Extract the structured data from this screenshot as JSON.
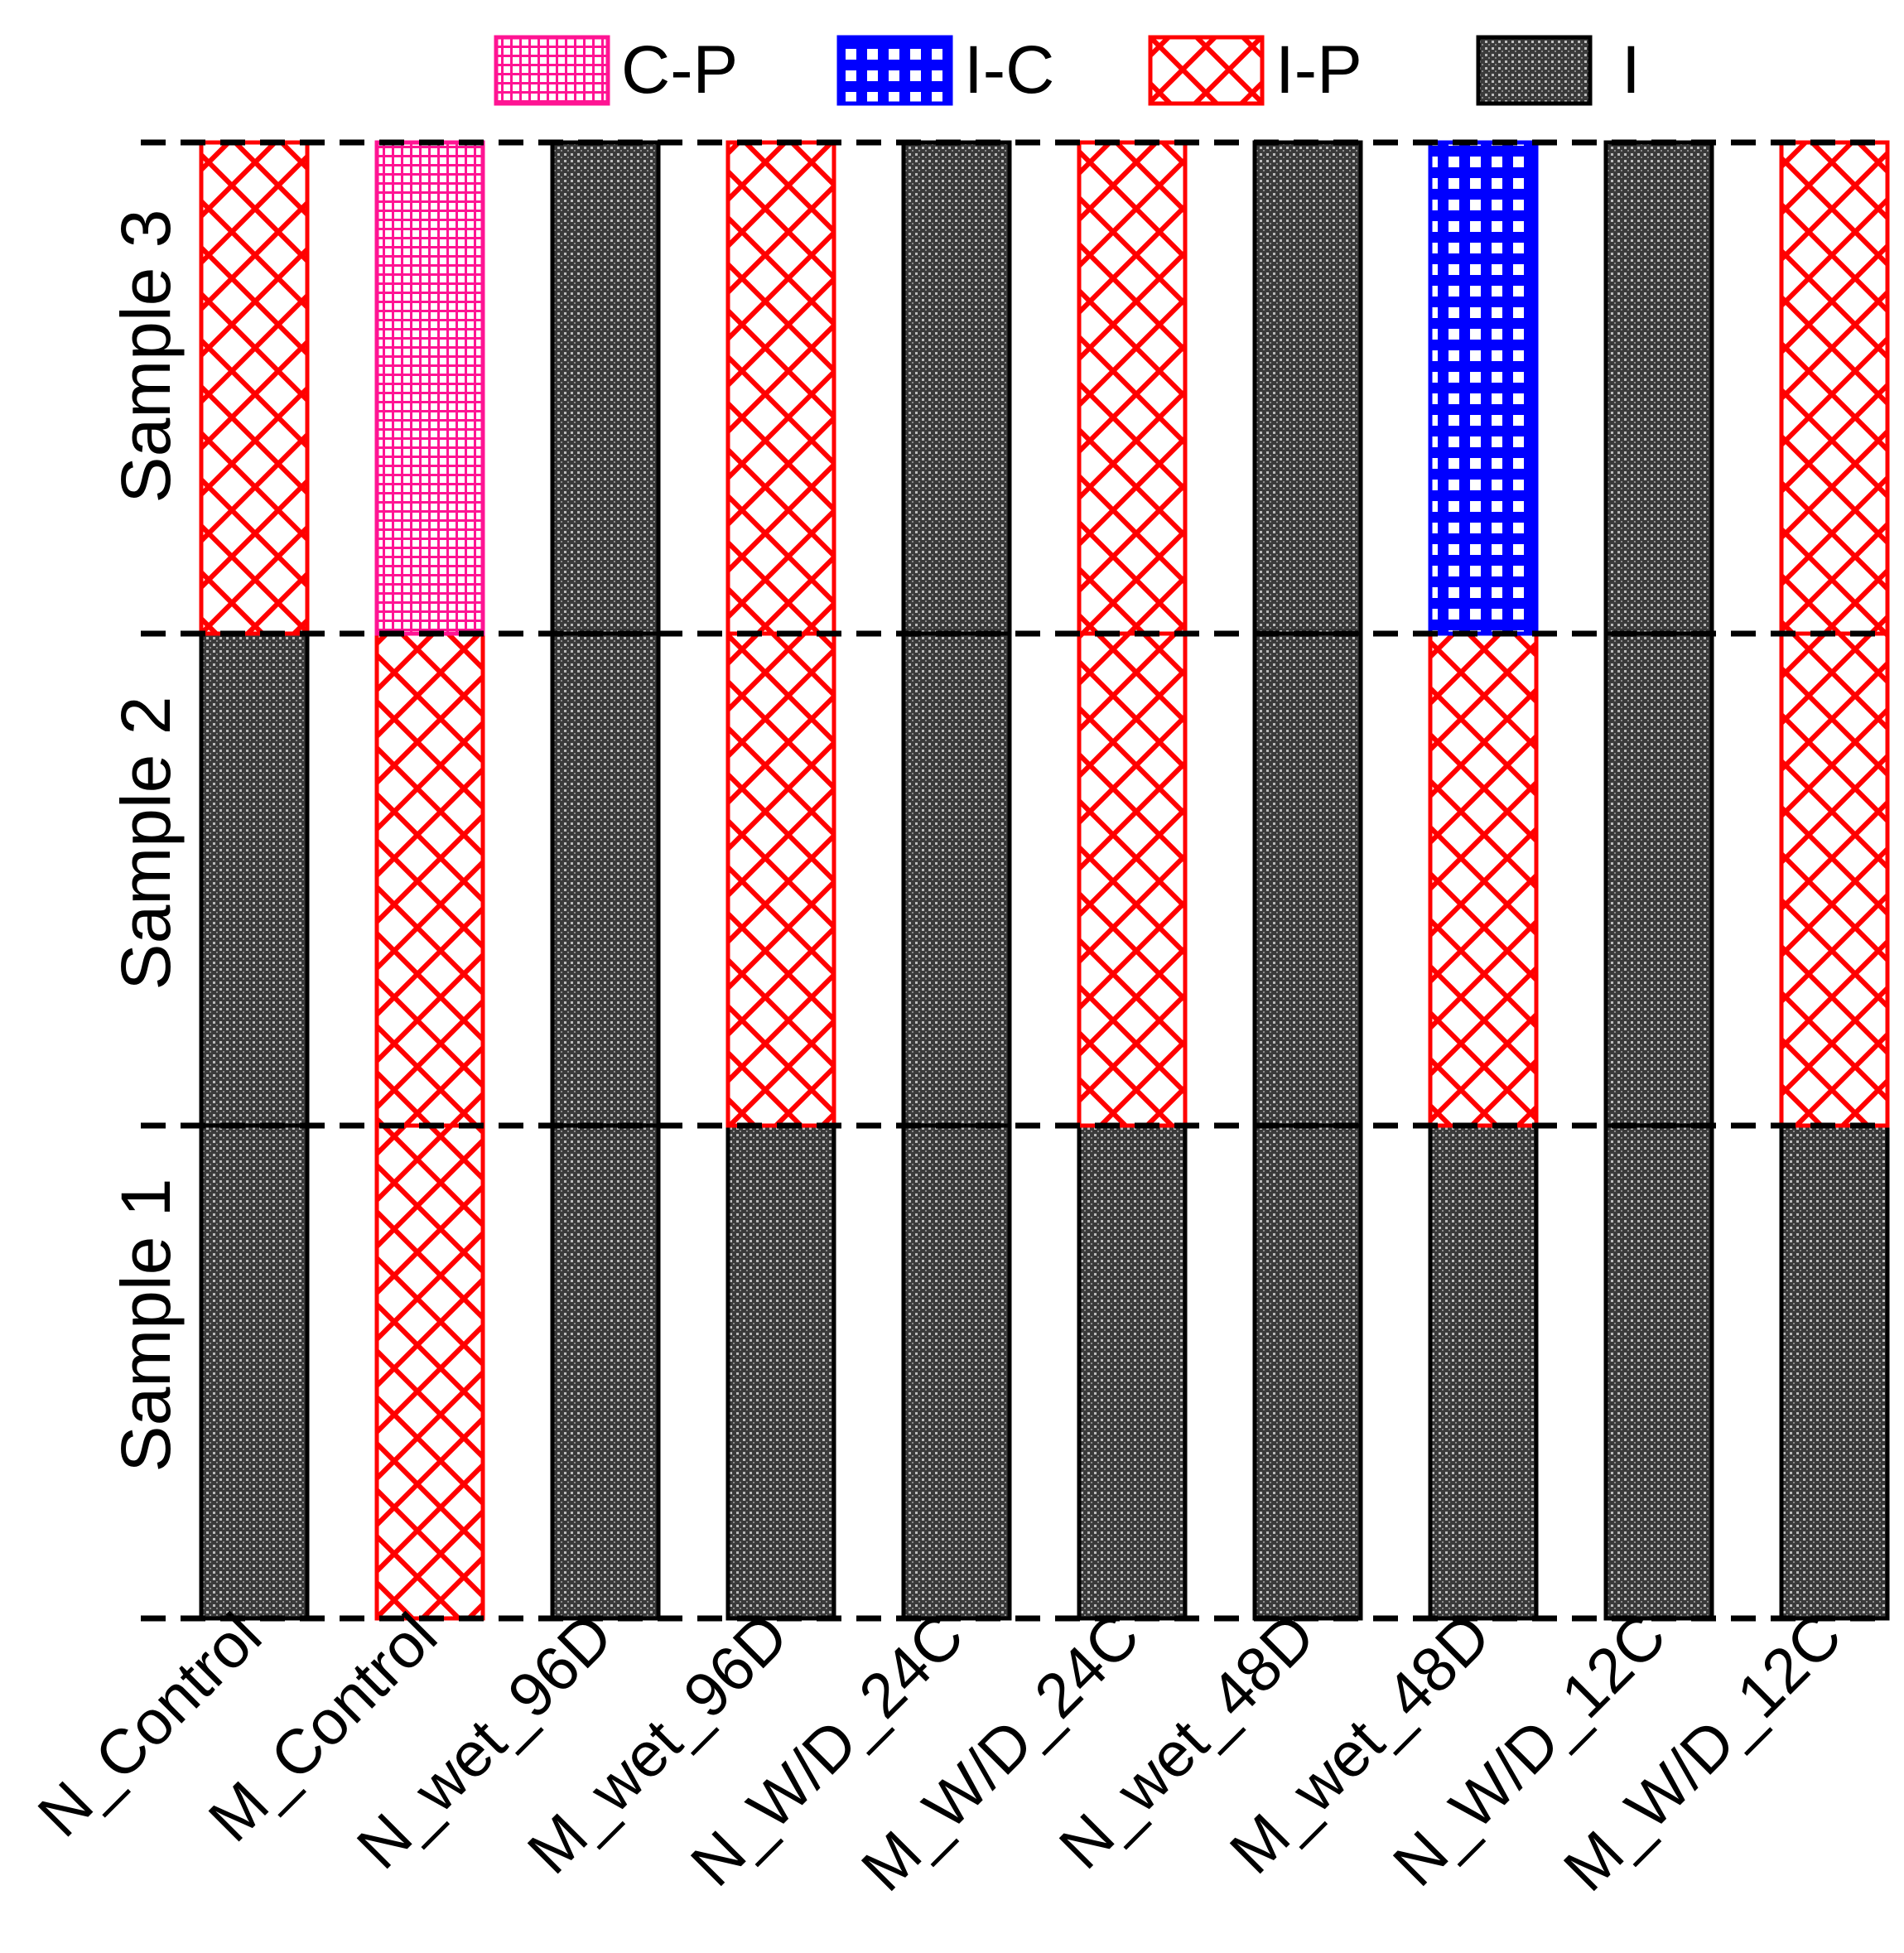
{
  "chart_data": {
    "type": "categorical-stacked-bar",
    "title": "",
    "categories": [
      "N_Control",
      "M_Control",
      "N_wet_96D",
      "M_wet_96D",
      "N_W/D_24C",
      "M_W/D_24C",
      "N_wet_48D",
      "M_wet_48D",
      "N_W/D_12C",
      "M_W/D_12C"
    ],
    "rows": [
      "Sample 1",
      "Sample 2",
      "Sample 3"
    ],
    "legend": [
      {
        "key": "C-P",
        "label": "C-P",
        "color": "#ff1493"
      },
      {
        "key": "I-C",
        "label": "I-C",
        "color": "#0000ff"
      },
      {
        "key": "I-P",
        "label": "I-P",
        "color": "#ff0000"
      },
      {
        "key": "I",
        "label": "I",
        "color": "#000000"
      }
    ],
    "series": [
      {
        "name": "Sample 1",
        "values": [
          "I",
          "I-P",
          "I",
          "I",
          "I",
          "I",
          "I",
          "I",
          "I",
          "I"
        ]
      },
      {
        "name": "Sample 2",
        "values": [
          "I",
          "I-P",
          "I",
          "I-P",
          "I",
          "I-P",
          "I",
          "I-P",
          "I",
          "I-P"
        ]
      },
      {
        "name": "Sample 3",
        "values": [
          "I-P",
          "C-P",
          "I",
          "I-P",
          "I",
          "I-P",
          "I",
          "I-C",
          "I",
          "I-P"
        ]
      }
    ],
    "legend_position": "top",
    "grid": "dashed horizontal row separators"
  }
}
